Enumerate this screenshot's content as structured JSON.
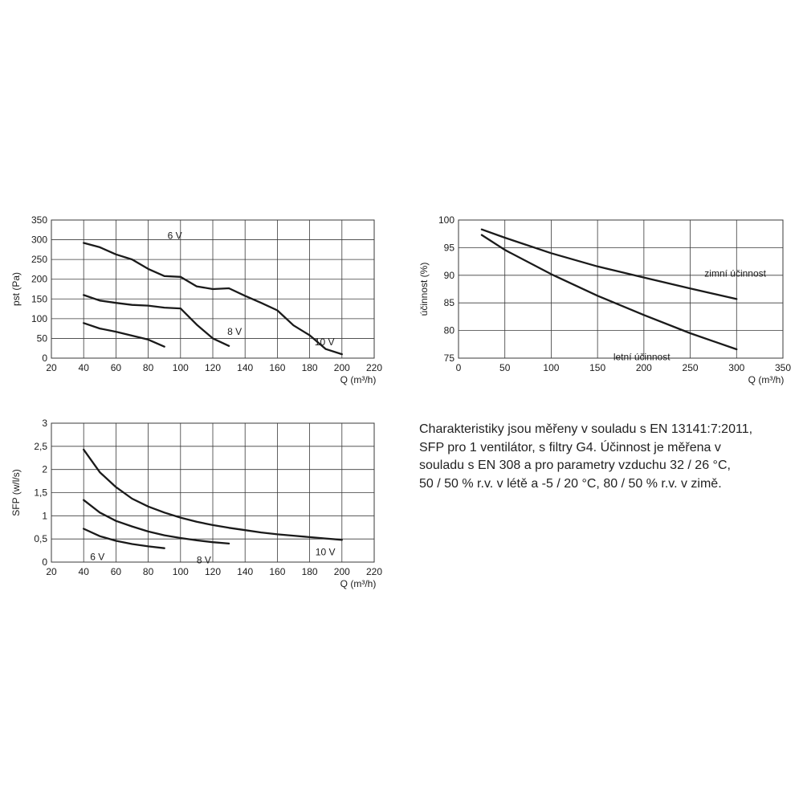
{
  "chart_data": [
    {
      "id": "pressure",
      "type": "line",
      "ylabel": "pst (Pa)",
      "xlabel": "Q (m³/h)",
      "xlim": [
        20,
        220
      ],
      "ylim": [
        0,
        350
      ],
      "xticks": [
        20,
        40,
        60,
        80,
        100,
        120,
        140,
        160,
        180,
        200,
        220
      ],
      "yticks": [
        0,
        50,
        100,
        150,
        200,
        250,
        300,
        350
      ],
      "ytick_labels": [
        "0",
        "50",
        "100",
        "150",
        "200",
        "250",
        "300",
        "350"
      ],
      "grid": true,
      "series": [
        {
          "name": "6 V",
          "x": [
            40,
            50,
            60,
            70,
            80,
            90
          ],
          "y": [
            89,
            75,
            67,
            57,
            47,
            29
          ]
        },
        {
          "name": "8 V",
          "x": [
            40,
            50,
            60,
            70,
            80,
            90,
            100,
            110,
            120,
            130
          ],
          "y": [
            160,
            146,
            140,
            135,
            133,
            128,
            126,
            85,
            50,
            31
          ]
        },
        {
          "name": "10 V",
          "x": [
            40,
            50,
            60,
            70,
            80,
            90,
            100,
            110,
            120,
            130,
            140,
            150,
            160,
            170,
            180,
            190,
            200
          ],
          "y": [
            292,
            281,
            263,
            250,
            226,
            208,
            206,
            182,
            175,
            177,
            158,
            140,
            121,
            83,
            58,
            23,
            10
          ]
        }
      ]
    },
    {
      "id": "efficiency",
      "type": "line",
      "ylabel": "účinnost (%)",
      "xlabel": "Q (m³/h)",
      "xlim": [
        0,
        350
      ],
      "ylim": [
        75,
        100
      ],
      "xticks": [
        0,
        50,
        100,
        150,
        200,
        250,
        300,
        350
      ],
      "yticks": [
        75,
        80,
        85,
        90,
        95,
        100
      ],
      "ytick_labels": [
        "75",
        "80",
        "85",
        "90",
        "95",
        "100"
      ],
      "grid": true,
      "series": [
        {
          "name": "zimní účinnost",
          "x": [
            25,
            50,
            100,
            150,
            200,
            250,
            300
          ],
          "y": [
            98.3,
            96.8,
            94.0,
            91.6,
            89.6,
            87.6,
            85.7
          ]
        },
        {
          "name": "letní účinnost",
          "x": [
            25,
            50,
            100,
            150,
            200,
            250,
            300
          ],
          "y": [
            97.3,
            94.6,
            90.2,
            86.3,
            82.8,
            79.5,
            76.6
          ]
        }
      ]
    },
    {
      "id": "sfp",
      "type": "line",
      "ylabel": "SFP (w/l/s)",
      "xlabel": "Q (m³/h)",
      "xlim": [
        20,
        220
      ],
      "ylim": [
        0,
        3
      ],
      "xticks": [
        20,
        40,
        60,
        80,
        100,
        120,
        140,
        160,
        180,
        200,
        220
      ],
      "yticks": [
        0,
        0.5,
        1,
        1.5,
        2,
        2.5,
        3
      ],
      "ytick_labels": [
        "0",
        "0,5",
        "1",
        "1,5",
        "2",
        "2,5",
        "3"
      ],
      "grid": true,
      "series": [
        {
          "name": "6 V",
          "x": [
            40,
            50,
            60,
            70,
            80,
            90
          ],
          "y": [
            0.72,
            0.56,
            0.46,
            0.39,
            0.34,
            0.3
          ]
        },
        {
          "name": "8 V",
          "x": [
            40,
            50,
            60,
            70,
            80,
            90,
            100,
            110,
            120,
            130
          ],
          "y": [
            1.34,
            1.07,
            0.89,
            0.77,
            0.66,
            0.58,
            0.52,
            0.47,
            0.43,
            0.4
          ]
        },
        {
          "name": "10 V",
          "x": [
            40,
            50,
            60,
            70,
            80,
            90,
            100,
            110,
            120,
            130,
            140,
            150,
            160,
            170,
            180,
            190,
            200
          ],
          "y": [
            2.43,
            1.94,
            1.62,
            1.37,
            1.2,
            1.07,
            0.96,
            0.87,
            0.8,
            0.74,
            0.69,
            0.64,
            0.6,
            0.57,
            0.54,
            0.51,
            0.48
          ]
        }
      ]
    }
  ],
  "note": {
    "lines": [
      "Charakteristiky jsou měřeny v souladu s EN 13141:7:2011,",
      "SFP pro 1 ventilátor, s filtry G4. Účinnost je měřena v",
      "souladu s EN 308 a pro parametry vzduchu 32 / 26 °C,",
      "50 / 50 % r.v. v létě a -5 / 20 °C, 80 / 50 % r.v. v zimě."
    ]
  },
  "colors": {
    "line": "#1a1a1a",
    "grid": "#3a3a3a",
    "text": "#1a1a1a"
  }
}
